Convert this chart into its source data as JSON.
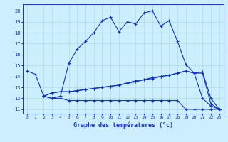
{
  "xlabel": "Graphe des températures (°c)",
  "bg_color": "#cceeff",
  "line_color": "#1133bb",
  "grid_color": "#aadddd",
  "x_ticks": [
    0,
    1,
    2,
    3,
    4,
    5,
    6,
    7,
    8,
    9,
    10,
    11,
    12,
    13,
    14,
    15,
    16,
    17,
    18,
    19,
    20,
    21,
    22,
    23
  ],
  "y_ticks": [
    11,
    12,
    13,
    14,
    15,
    16,
    17,
    18,
    19,
    20
  ],
  "ylim": [
    10.6,
    20.6
  ],
  "xlim": [
    -0.5,
    23.5
  ],
  "series": [
    {
      "x": [
        0,
        1,
        2,
        3,
        4,
        5,
        6,
        7,
        8,
        9,
        10,
        11,
        12,
        13,
        14,
        15,
        16,
        17,
        18,
        19,
        20,
        21,
        22,
        23
      ],
      "y": [
        14.5,
        14.2,
        12.2,
        12.0,
        12.2,
        15.2,
        16.5,
        17.2,
        18.0,
        19.1,
        19.4,
        18.1,
        19.0,
        18.8,
        19.8,
        20.0,
        18.6,
        19.1,
        17.2,
        15.1,
        14.3,
        12.0,
        11.3,
        11.0
      ]
    },
    {
      "x": [
        2,
        3,
        4,
        5,
        6,
        7,
        8,
        9,
        10,
        11,
        12,
        13,
        14,
        15,
        16,
        17,
        18,
        19,
        20,
        21,
        22,
        23
      ],
      "y": [
        12.2,
        12.5,
        12.6,
        12.6,
        12.7,
        12.8,
        12.9,
        13.0,
        13.1,
        13.2,
        13.4,
        13.6,
        13.7,
        13.9,
        14.0,
        14.1,
        14.3,
        14.5,
        14.3,
        14.3,
        11.5,
        11.0
      ]
    },
    {
      "x": [
        2,
        3,
        4,
        5,
        6,
        7,
        8,
        9,
        10,
        11,
        12,
        13,
        14,
        15,
        16,
        17,
        18,
        19,
        20,
        21,
        22,
        23
      ],
      "y": [
        12.2,
        12.5,
        12.6,
        12.6,
        12.7,
        12.8,
        12.9,
        13.0,
        13.1,
        13.2,
        13.4,
        13.5,
        13.7,
        13.8,
        14.0,
        14.1,
        14.3,
        14.5,
        14.3,
        14.4,
        12.0,
        11.0
      ]
    },
    {
      "x": [
        2,
        3,
        4,
        5,
        6,
        7,
        8,
        9,
        10,
        11,
        12,
        13,
        14,
        15,
        16,
        17,
        18,
        19,
        20,
        21,
        22,
        23
      ],
      "y": [
        12.2,
        12.0,
        12.0,
        11.8,
        11.8,
        11.8,
        11.8,
        11.8,
        11.8,
        11.8,
        11.8,
        11.8,
        11.8,
        11.8,
        11.8,
        11.8,
        11.8,
        11.0,
        11.0,
        11.0,
        11.0,
        11.0
      ]
    }
  ]
}
